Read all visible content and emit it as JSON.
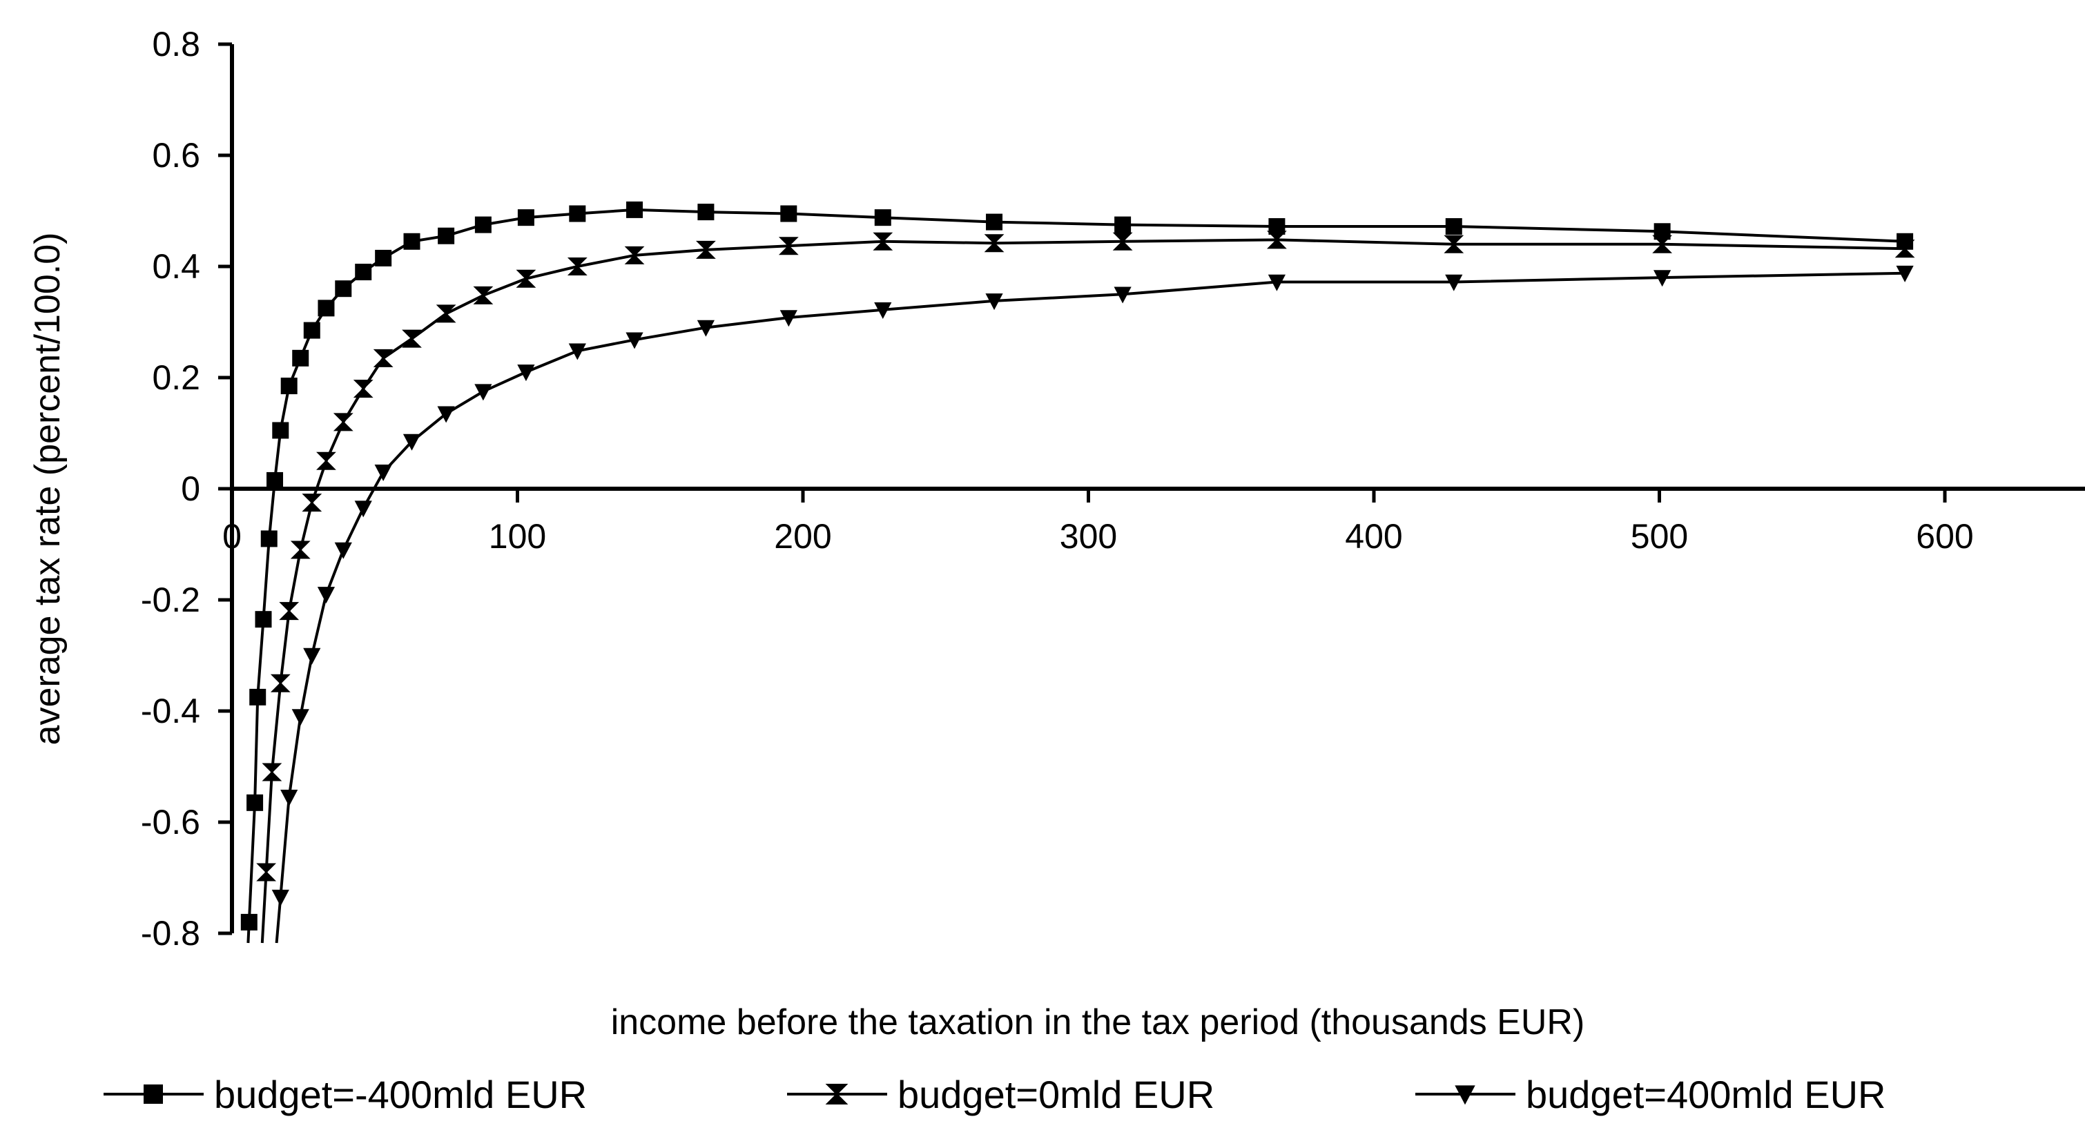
{
  "chart_data": {
    "type": "line",
    "title": "",
    "xlabel": "income before the taxation in the tax period (thousands EUR)",
    "ylabel": "average tax rate (percent/100.0)",
    "xlim": [
      0,
      650
    ],
    "ylim": [
      -0.8,
      0.8
    ],
    "x_ticks": [
      "0",
      "100",
      "200",
      "300",
      "400",
      "500",
      "600"
    ],
    "y_ticks": [
      "0.8",
      "0.6",
      "0.4",
      "0.2",
      "0",
      "-0.2",
      "-0.4",
      "-0.6",
      "-0.8"
    ],
    "grid": false,
    "legend_position": "bottom",
    "series": [
      {
        "name": "budget=-400mld EUR",
        "marker": "square",
        "color": "#000000",
        "points": [
          [
            6,
            -0.78
          ],
          [
            8,
            -0.565
          ],
          [
            9,
            -0.375
          ],
          [
            11,
            -0.235
          ],
          [
            13,
            -0.09
          ],
          [
            15,
            0.015
          ],
          [
            17,
            0.105
          ],
          [
            20,
            0.185
          ],
          [
            24,
            0.235
          ],
          [
            28,
            0.285
          ],
          [
            33,
            0.325
          ],
          [
            39,
            0.36
          ],
          [
            46,
            0.39
          ],
          [
            53,
            0.415
          ],
          [
            63,
            0.445
          ],
          [
            75,
            0.455
          ],
          [
            88,
            0.475
          ],
          [
            103,
            0.488
          ],
          [
            121,
            0.495
          ],
          [
            141,
            0.502
          ],
          [
            166,
            0.498
          ],
          [
            195,
            0.495
          ],
          [
            228,
            0.488
          ],
          [
            267,
            0.48
          ],
          [
            312,
            0.475
          ],
          [
            366,
            0.472
          ],
          [
            428,
            0.472
          ],
          [
            501,
            0.463
          ],
          [
            586,
            0.445
          ]
        ]
      },
      {
        "name": "budget=0mld EUR",
        "marker": "hourglass",
        "color": "#000000",
        "points": [
          [
            12,
            -0.69
          ],
          [
            14,
            -0.51
          ],
          [
            17,
            -0.35
          ],
          [
            20,
            -0.22
          ],
          [
            24,
            -0.11
          ],
          [
            28,
            -0.025
          ],
          [
            33,
            0.05
          ],
          [
            39,
            0.12
          ],
          [
            46,
            0.18
          ],
          [
            53,
            0.235
          ],
          [
            63,
            0.27
          ],
          [
            75,
            0.315
          ],
          [
            88,
            0.348
          ],
          [
            103,
            0.378
          ],
          [
            121,
            0.4
          ],
          [
            141,
            0.42
          ],
          [
            166,
            0.43
          ],
          [
            195,
            0.437
          ],
          [
            228,
            0.445
          ],
          [
            267,
            0.442
          ],
          [
            312,
            0.445
          ],
          [
            366,
            0.448
          ],
          [
            428,
            0.44
          ],
          [
            501,
            0.44
          ],
          [
            586,
            0.432
          ]
        ]
      },
      {
        "name": "budget=400mld EUR",
        "marker": "triangle-down",
        "color": "#000000",
        "points": [
          [
            17,
            -0.735
          ],
          [
            20,
            -0.555
          ],
          [
            24,
            -0.41
          ],
          [
            28,
            -0.3
          ],
          [
            33,
            -0.19
          ],
          [
            39,
            -0.11
          ],
          [
            46,
            -0.035
          ],
          [
            53,
            0.03
          ],
          [
            63,
            0.085
          ],
          [
            75,
            0.135
          ],
          [
            88,
            0.175
          ],
          [
            103,
            0.21
          ],
          [
            121,
            0.248
          ],
          [
            141,
            0.268
          ],
          [
            166,
            0.29
          ],
          [
            195,
            0.308
          ],
          [
            228,
            0.322
          ],
          [
            267,
            0.338
          ],
          [
            312,
            0.35
          ],
          [
            366,
            0.372
          ],
          [
            428,
            0.372
          ],
          [
            501,
            0.38
          ],
          [
            586,
            0.388
          ]
        ]
      }
    ]
  }
}
